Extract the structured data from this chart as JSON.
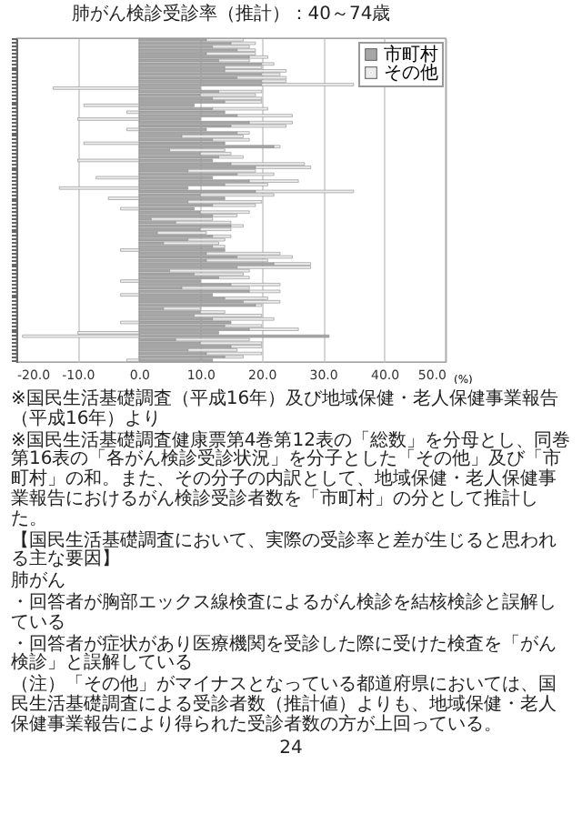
{
  "chart_data": {
    "type": "bar",
    "orientation": "horizontal",
    "stacked": true,
    "title": "肺がん検診受診率（推計）：40～74歳",
    "xlabel": "(%)",
    "categories": [
      null,
      null,
      null,
      null,
      null,
      null,
      null,
      null,
      null,
      null,
      null,
      null,
      null,
      null,
      null,
      null,
      null,
      null,
      null,
      null,
      null,
      null,
      null,
      null,
      null,
      null,
      null,
      null,
      null,
      null,
      null,
      null,
      null,
      null,
      null,
      null,
      null,
      null,
      null,
      null,
      null,
      null,
      null,
      null,
      null,
      null,
      null,
      null,
      null,
      null,
      null,
      null,
      null,
      null,
      null,
      null,
      null,
      null,
      null,
      null,
      null,
      null,
      null,
      null,
      null,
      null,
      null,
      null,
      null,
      null,
      null,
      null,
      null,
      null,
      null,
      null,
      null,
      null,
      null,
      null,
      null,
      null,
      null,
      null,
      null,
      null,
      null,
      null,
      null,
      null,
      null,
      null,
      null,
      null
    ],
    "series": [
      {
        "name": "市町村",
        "color": "#a6a6a6",
        "values": [
          11,
          15,
          12,
          16,
          11,
          18,
          13,
          20,
          14,
          14,
          20,
          16,
          20,
          20,
          10,
          13,
          10,
          12,
          14,
          9,
          12,
          14,
          16,
          10,
          18,
          15,
          11,
          16,
          7,
          12,
          14,
          22,
          5,
          10,
          13,
          12,
          15,
          19,
          8,
          16,
          12,
          18,
          14,
          8,
          19,
          10,
          14,
          8,
          12,
          9,
          10,
          12,
          2,
          6,
          15,
          10,
          3,
          12,
          8,
          4,
          12,
          14,
          11,
          16,
          11,
          22,
          16,
          5,
          9,
          13,
          10,
          15,
          7,
          18,
          12,
          14,
          17,
          19,
          4,
          10,
          9,
          12,
          15,
          14,
          18,
          13,
          31,
          6,
          10,
          15,
          8,
          11,
          14,
          12
        ]
      },
      {
        "name": "その他",
        "color": "#ececec",
        "values": [
          6,
          4,
          6,
          3,
          8,
          3,
          5,
          2,
          6,
          10,
          3,
          8,
          4,
          15,
          -14,
          7,
          9,
          8,
          6,
          -9,
          9,
          -2,
          9,
          -10,
          7,
          9,
          -2,
          2,
          10,
          6,
          -9,
          1,
          9,
          5,
          4,
          -10,
          12,
          9,
          11,
          6,
          -7,
          8,
          7,
          -13,
          16,
          12,
          -5,
          12,
          7,
          -3,
          8,
          4,
          10,
          9,
          2,
          5,
          8,
          3,
          6,
          9,
          2,
          -3,
          12,
          9,
          10,
          6,
          12,
          13,
          8,
          5,
          -3,
          8,
          11,
          5,
          -3,
          7,
          6,
          1,
          6,
          4,
          11,
          10,
          -3,
          6,
          8,
          -10,
          -19,
          12,
          10,
          5,
          8,
          9,
          3,
          -2
        ]
      }
    ],
    "xlim": [
      -20,
      50
    ],
    "xticks": [
      {
        "value": -20,
        "label": "-20.0"
      },
      {
        "value": -10,
        "label": "-10.0"
      },
      {
        "value": 0,
        "label": "0.0"
      },
      {
        "value": 10,
        "label": "10.0"
      },
      {
        "value": 20,
        "label": "20.0"
      },
      {
        "value": 30,
        "label": "30.0"
      },
      {
        "value": 40,
        "label": "40.0"
      },
      {
        "value": 50,
        "label": "50.0"
      }
    ],
    "grid": "x",
    "legend": "top right",
    "annotations": [
      "※国民生活基礎調査（平成16年）及び地域保健・老人保健事業報告（平成16年）より",
      "※国民生活基礎調査健康票第4巻第12表の「総数」を分母とし、同巻第16表の「各がん検診受診状況」を分子とした「その他」及び「市町村」の和。また、その分子の内訳として、地域保健・老人保健事業報告におけるがん検診受診者数を「市町村」の分として推計した。",
      "【国民生活基礎調査において、実際の受診率と差が生じると思われる主な要因】",
      "肺がん",
      "・回答者が胸部エックス線検査によるがん検診を結核検診と誤解している",
      "・回答者が症状があり医療機関を受診した際に受けた検査を「がん検診」と誤解している",
      "（注）「その他」がマイナスとなっている都道府県においては、国民生活基礎調査による受診者数（推計値）よりも、地域保健・老人保健事業報告により得られた受診者数の方が上回っている。",
      "24"
    ]
  }
}
